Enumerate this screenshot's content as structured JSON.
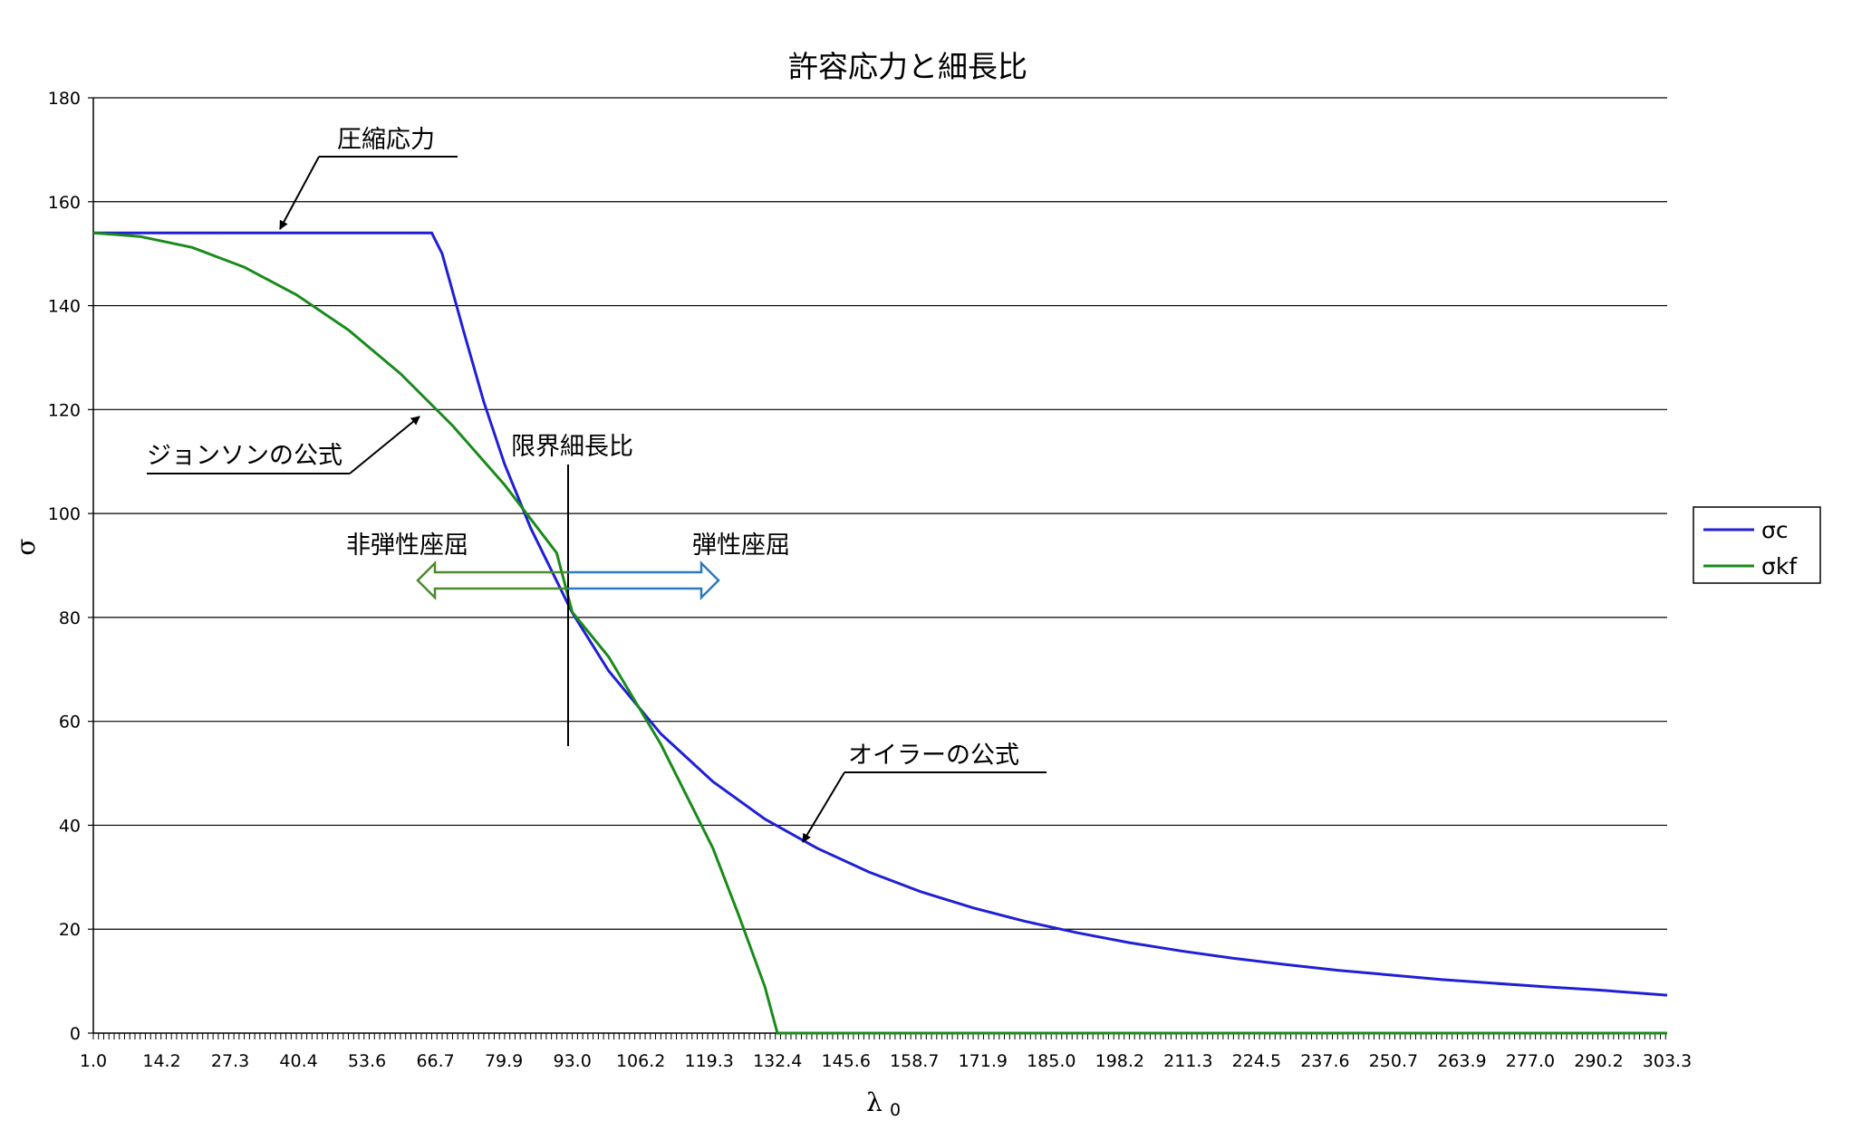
{
  "chart_data": {
    "type": "line",
    "title": "許容応力と細長比",
    "xlabel": "λ",
    "xlabel_sub": "0",
    "ylabel": "σ",
    "xlim": [
      1.0,
      303.3
    ],
    "ylim": [
      0,
      180
    ],
    "y_ticks": [
      0,
      20,
      40,
      60,
      80,
      100,
      120,
      140,
      160,
      180
    ],
    "x_tick_labels": [
      "1.0",
      "14.2",
      "27.3",
      "40.4",
      "53.6",
      "66.7",
      "79.9",
      "93.0",
      "106.2",
      "119.3",
      "132.4",
      "145.6",
      "158.7",
      "171.9",
      "185.0",
      "198.2",
      "211.3",
      "224.5",
      "237.6",
      "250.7",
      "263.9",
      "277.0",
      "290.2",
      "303.3"
    ],
    "grid": "horizontal",
    "legend_position": "right",
    "series": [
      {
        "name": "σc",
        "color": "#1f1fd6",
        "x": [
          1,
          10,
          20,
          30,
          40,
          50,
          60,
          66,
          68,
          72,
          76,
          80,
          85,
          90,
          93,
          100,
          110,
          120,
          130,
          140,
          150,
          160,
          170,
          180,
          190,
          200,
          210,
          220,
          230,
          240,
          250,
          260,
          270,
          280,
          290,
          303.3
        ],
        "values": [
          154,
          154,
          154,
          154,
          154,
          154,
          154,
          154,
          150,
          135.5,
          121.5,
          109.5,
          97.2,
          87,
          80.9,
          69.7,
          57.6,
          48.4,
          41.2,
          35.6,
          31,
          27.2,
          24.1,
          21.5,
          19.3,
          17.4,
          15.8,
          14.4,
          13.2,
          12.1,
          11.2,
          10.3,
          9.6,
          8.9,
          8.3,
          7.3
        ]
      },
      {
        "name": "σkf",
        "color": "#1a8a1a",
        "x": [
          1,
          10,
          20,
          30,
          40,
          50,
          60,
          70,
          80,
          90,
          93,
          100,
          110,
          120,
          125,
          130,
          132.4,
          140,
          160,
          180,
          200,
          220,
          240,
          260,
          280,
          303.3
        ],
        "values": [
          154,
          153.3,
          151.2,
          147.4,
          142.1,
          135.3,
          126.9,
          116.9,
          105.5,
          92.4,
          81,
          72.4,
          55.6,
          35.6,
          22.6,
          8.9,
          0,
          0,
          0,
          0,
          0,
          0,
          0,
          0,
          0,
          0
        ]
      }
    ],
    "annotations": {
      "compressive": "圧縮応力",
      "johnson": "ジョンソンの公式",
      "critical": "限界細長比",
      "inelastic": "非弾性座屈",
      "elastic": "弾性座屈",
      "euler": "オイラーの公式"
    }
  }
}
